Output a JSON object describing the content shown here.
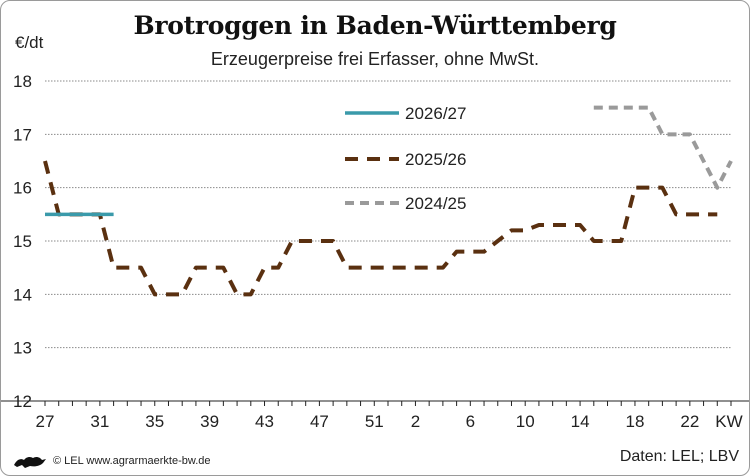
{
  "title": "Brotroggen in Baden-Württemberg",
  "subtitle": "Erzeugerpreise frei Erfasser, ohne MwSt.",
  "unit_label": "€/dt",
  "footer": {
    "credit": "© LEL www.agrarmaerkte-bw.de",
    "source": "Daten: LEL; LBV"
  },
  "chart_data": {
    "type": "line",
    "xlabel": "KW",
    "ylabel": "€/dt",
    "x_ticks": [
      "27",
      "31",
      "35",
      "39",
      "43",
      "47",
      "51",
      "2",
      "6",
      "10",
      "14",
      "18",
      "22"
    ],
    "x_axis_unit": "KW",
    "y_ticks": [
      12,
      13,
      14,
      15,
      16,
      17,
      18
    ],
    "ylim": [
      12,
      18
    ],
    "grid": true,
    "legend_position": "upper-middle",
    "series": [
      {
        "name": "2026/27",
        "color": "#3a9aaa",
        "style": "solid",
        "x": [
          "27",
          "28",
          "29",
          "30",
          "31",
          "32"
        ],
        "values": [
          15.5,
          15.5,
          15.5,
          15.5,
          15.5,
          15.5
        ]
      },
      {
        "name": "2025/26",
        "color": "#5a3010",
        "style": "dashed",
        "x": [
          "27",
          "28",
          "29",
          "30",
          "31",
          "32",
          "33",
          "34",
          "35",
          "36",
          "37",
          "38",
          "39",
          "40",
          "41",
          "42",
          "43",
          "44",
          "45",
          "46",
          "47",
          "48",
          "49",
          "50",
          "51",
          "52",
          "1",
          "2",
          "3",
          "4",
          "5",
          "6",
          "7",
          "8",
          "9",
          "10",
          "11",
          "12",
          "13",
          "14",
          "15",
          "16",
          "17",
          "18",
          "19",
          "20",
          "21",
          "22",
          "23",
          "24"
        ],
        "values": [
          16.5,
          15.5,
          15.5,
          15.5,
          15.5,
          14.5,
          14.5,
          14.5,
          14.0,
          14.0,
          14.0,
          14.5,
          14.5,
          14.5,
          14.0,
          14.0,
          14.5,
          14.5,
          15.0,
          15.0,
          15.0,
          15.0,
          14.5,
          14.5,
          14.5,
          14.5,
          14.5,
          14.5,
          14.5,
          14.5,
          14.8,
          14.8,
          14.8,
          15.0,
          15.2,
          15.2,
          15.3,
          15.3,
          15.3,
          15.3,
          15.0,
          15.0,
          15.0,
          16.0,
          16.0,
          16.0,
          15.5,
          15.5,
          15.5,
          15.5
        ]
      },
      {
        "name": "2024/25",
        "color": "#9a9a9a",
        "style": "dashed",
        "x": [
          "15",
          "16",
          "17",
          "18",
          "19",
          "20",
          "21",
          "22",
          "23",
          "24",
          "25"
        ],
        "values": [
          17.5,
          17.5,
          17.5,
          17.5,
          17.5,
          17.0,
          17.0,
          17.0,
          16.5,
          16.0,
          16.5
        ]
      }
    ]
  }
}
